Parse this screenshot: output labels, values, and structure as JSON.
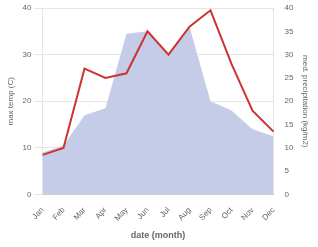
{
  "chart_data": {
    "type": "line",
    "categories": [
      "Jan",
      "Feb",
      "Mar",
      "Apr",
      "May",
      "Jun",
      "Jul",
      "Aug",
      "Sep",
      "Oct",
      "Nov",
      "Dec"
    ],
    "xlabel": "date (month)",
    "ylabel": "max temp (C)",
    "y2label": "med. precipitation (kg/m2)",
    "series": [
      {
        "type": "area",
        "axis": "y2",
        "color": "#c5cce8",
        "values": [
          9.0,
          10.5,
          17.0,
          18.5,
          34.5,
          35.0,
          30.0,
          36.0,
          20.0,
          18.0,
          14.0,
          12.5
        ]
      },
      {
        "type": "line",
        "color": "#cc3333",
        "values": [
          8.5,
          10.0,
          27.0,
          25.0,
          26.0,
          35.0,
          30.0,
          36.0,
          39.5,
          28.0,
          18.0,
          13.5
        ]
      }
    ],
    "ylim": [
      0,
      40
    ],
    "yticks": [
      0,
      10,
      20,
      30,
      40
    ],
    "y2lim": [
      0,
      40
    ],
    "y2ticks": [
      0,
      5,
      10,
      15,
      20,
      25,
      30,
      35,
      40
    ],
    "grid": true
  }
}
